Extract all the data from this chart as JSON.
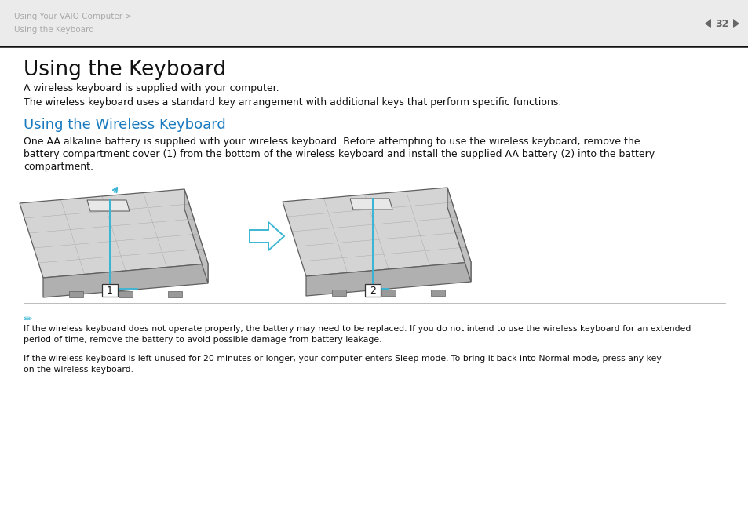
{
  "bg_color": "#ffffff",
  "header_bg": "#ebebeb",
  "header_text1": "Using Your VAIO Computer >",
  "header_text2": "Using the Keyboard",
  "page_num": "32",
  "title": "Using the Keyboard",
  "subtitle_color": "#1a7abf",
  "subtitle": "Using the Wireless Keyboard",
  "para1": "A wireless keyboard is supplied with your computer.",
  "para2": "The wireless keyboard uses a standard key arrangement with additional keys that perform specific functions.",
  "para3a": "One AA alkaline battery is supplied with your wireless keyboard. Before attempting to use the wireless keyboard, remove the",
  "para3b": "battery compartment cover (1) from the bottom of the wireless keyboard and install the supplied AA battery (2) into the battery",
  "para3c": "compartment.",
  "note1a": "If the wireless keyboard does not operate properly, the battery may need to be replaced. If you do not intend to use the wireless keyboard for an extended",
  "note1b": "period of time, remove the battery to avoid possible damage from battery leakage.",
  "note2a": "If the wireless keyboard is left unused for 20 minutes or longer, your computer enters Sleep mode. To bring it back into Normal mode, press any key",
  "note2b": "on the wireless keyboard.",
  "kbd_top_color": "#d4d4d4",
  "kbd_front_color": "#b0b0b0",
  "kbd_side_color": "#c0c0c0",
  "kbd_edge_color": "#606060",
  "arrow_color": "#3ab5d4",
  "label1": "1",
  "label2": "2",
  "header_text_color": "#aaaaaa",
  "page_num_color": "#666666",
  "divider_color": "#111111",
  "note_icon_color": "#3ab5d4",
  "body_text_color": "#111111",
  "note_text_color": "#111111",
  "title_color": "#111111"
}
